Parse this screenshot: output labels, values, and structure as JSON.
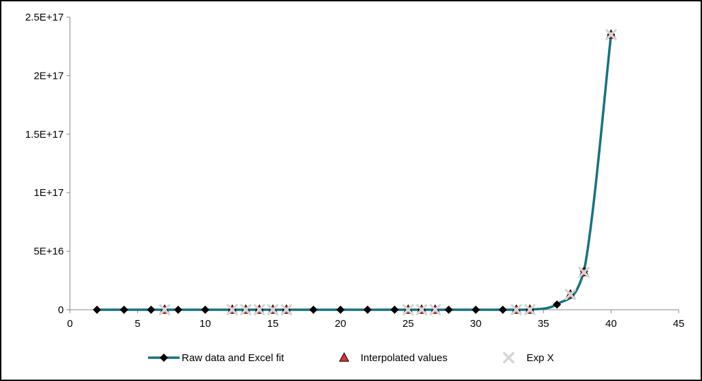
{
  "chart_data": {
    "type": "scatter",
    "title": "",
    "xlabel": "",
    "ylabel": "",
    "xlim": [
      0,
      45
    ],
    "ylim": [
      0,
      2.5e+17
    ],
    "x_ticks": [
      0,
      5,
      10,
      15,
      20,
      25,
      30,
      35,
      40,
      45
    ],
    "x_tick_labels": [
      "0",
      "5",
      "10",
      "15",
      "20",
      "25",
      "30",
      "35",
      "40",
      "45"
    ],
    "y_ticks": [
      0,
      5e+16,
      1e+17,
      1.5e+17,
      2e+17,
      2.5e+17
    ],
    "y_tick_labels": [
      "0",
      "5E+16",
      "1E+17",
      "1.5E+17",
      "2E+17",
      "2.5E+17"
    ],
    "grid": false,
    "legend_position": "bottom",
    "series": [
      {
        "name": "Raw data and Excel fit",
        "color": "#17727e",
        "marker_color": "#000000",
        "marker": "diamond",
        "x": [
          2,
          4,
          6,
          8,
          10,
          12,
          14,
          16,
          18,
          20,
          22,
          24,
          26,
          28,
          30,
          32,
          34,
          36,
          38,
          40
        ],
        "y": [
          0,
          0,
          0,
          0,
          0,
          0,
          0,
          0,
          0,
          0,
          0,
          0,
          0,
          0,
          0,
          0,
          40000000000000.0,
          4500000000000000.0,
          3.3e+16,
          2.35e+17
        ]
      },
      {
        "name": "Interpolated values",
        "color": "#e0303a",
        "marker": "triangle",
        "x": [
          7,
          12,
          13,
          14,
          15,
          16,
          25,
          26,
          27,
          33,
          34,
          37,
          38,
          40
        ],
        "y": [
          0,
          0,
          0,
          0,
          0,
          0,
          0,
          0,
          0,
          0,
          10000000000000.0,
          1.3e+16,
          3.2e+16,
          2.35e+17
        ]
      },
      {
        "name": "Exp X",
        "color": "#d6d6d6",
        "marker": "x",
        "x": [
          7,
          12,
          13,
          14,
          15,
          16,
          25,
          26,
          27,
          33,
          34,
          37,
          38,
          40
        ],
        "y": [
          0,
          0,
          0,
          0,
          0,
          0,
          0,
          0,
          0,
          0,
          10000000000000.0,
          1.3e+16,
          3.2e+16,
          2.35e+17
        ]
      }
    ]
  }
}
